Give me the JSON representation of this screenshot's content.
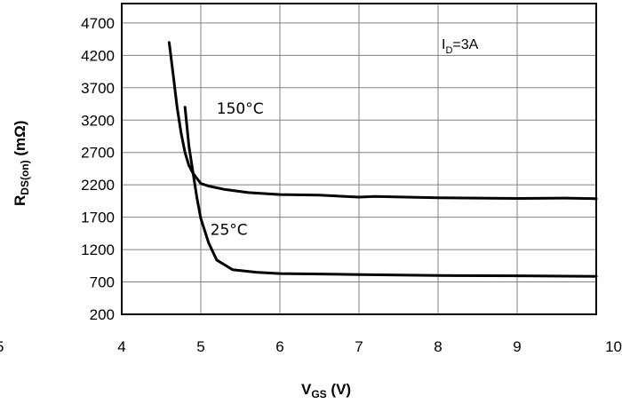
{
  "chart_data": {
    "type": "line",
    "xlabel": "V",
    "xlabel_sub": "GS",
    "xlabel_unit": " (V)",
    "ylabel": "R",
    "ylabel_sub": "DS(on)",
    "ylabel_unit": " (mΩ)",
    "xlim": [
      4,
      10
    ],
    "ylim": [
      200,
      5000
    ],
    "xticks": [
      "4",
      "5",
      "6",
      "7",
      "8",
      "9",
      "10"
    ],
    "yticks": [
      "200",
      "700",
      "1200",
      "1700",
      "2200",
      "2700",
      "3200",
      "3700",
      "4200",
      "4700"
    ],
    "ytick_values": [
      200,
      700,
      1200,
      1700,
      2200,
      2700,
      3200,
      3700,
      4200,
      4700
    ],
    "xtick_values": [
      4,
      5,
      6,
      7,
      8,
      9,
      10
    ],
    "grid": true,
    "condition": {
      "main": "I",
      "sub": "D",
      "rest": "=3A"
    },
    "partial_left_label": "5",
    "series": [
      {
        "name": "150°C",
        "label_pos": {
          "x": 5.2,
          "y": 3300
        },
        "x": [
          4.6,
          4.65,
          4.7,
          4.75,
          4.8,
          4.85,
          4.9,
          4.95,
          5.0,
          5.1,
          5.3,
          5.6,
          6.0,
          6.5,
          7.0,
          7.2,
          8.0,
          9.0,
          9.6,
          10.0
        ],
        "y": [
          4400,
          3900,
          3400,
          3000,
          2700,
          2500,
          2380,
          2300,
          2220,
          2180,
          2130,
          2080,
          2050,
          2040,
          2010,
          2020,
          2000,
          1990,
          1995,
          1985
        ]
      },
      {
        "name": "25°C",
        "label_pos": {
          "x": 5.12,
          "y": 1430
        },
        "x": [
          4.8,
          4.85,
          4.9,
          4.95,
          5.0,
          5.1,
          5.2,
          5.4,
          5.7,
          6.0,
          7.0,
          8.0,
          9.0,
          10.0
        ],
        "y": [
          3400,
          2800,
          2400,
          2000,
          1680,
          1300,
          1040,
          890,
          850,
          830,
          815,
          800,
          795,
          785
        ]
      }
    ]
  }
}
